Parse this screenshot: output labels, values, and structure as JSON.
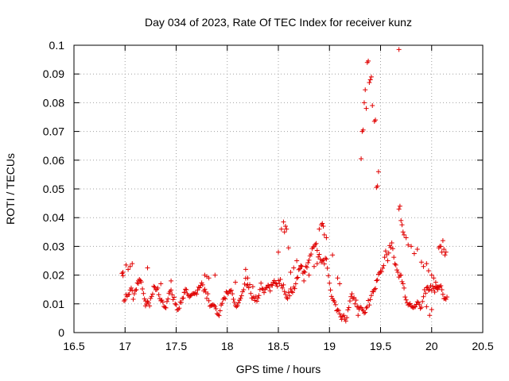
{
  "chart_data": {
    "type": "scatter",
    "title": "Day 034 of 2023, Rate Of TEC Index for receiver kunz",
    "xlabel": "GPS time / hours",
    "ylabel": "ROTI / TECUs",
    "xlim": [
      16.5,
      20.5
    ],
    "ylim": [
      0,
      0.1
    ],
    "xticks": [
      "16.5",
      "17",
      "17.5",
      "18",
      "18.5",
      "19",
      "19.5",
      "20",
      "20.5"
    ],
    "yticks": [
      "0",
      "0.01",
      "0.02",
      "0.03",
      "0.04",
      "0.05",
      "0.06",
      "0.07",
      "0.08",
      "0.09",
      "0.1"
    ],
    "grid": true,
    "marker": "+",
    "color": "#e00000",
    "series": [
      {
        "x": [
          16.97,
          16.98,
          16.99,
          17.0,
          17.01,
          17.02,
          17.03,
          17.04,
          17.05,
          17.06,
          17.07,
          17.08,
          17.09,
          17.1,
          17.11,
          17.12,
          17.13,
          17.14,
          17.15,
          17.16,
          17.17,
          17.18,
          17.19,
          17.2,
          17.21,
          17.22,
          17.23,
          17.24,
          17.25,
          17.26,
          17.27,
          17.28,
          17.29,
          17.3,
          17.31,
          17.32,
          17.33,
          17.34,
          17.35,
          17.36,
          17.37,
          17.38,
          17.39,
          17.4,
          17.41,
          17.42,
          17.43,
          17.44,
          17.45,
          17.46,
          17.47,
          17.48,
          17.49,
          17.5,
          17.51,
          17.52,
          17.53,
          17.54,
          17.55,
          17.56,
          17.57,
          17.58,
          17.59,
          17.6,
          17.61,
          17.62,
          17.63,
          17.64,
          17.65,
          17.66,
          17.67,
          17.68,
          17.69,
          17.7,
          17.71,
          17.72,
          17.73,
          17.74,
          17.75,
          17.76,
          17.77,
          17.78,
          17.79,
          17.8,
          17.81,
          17.82,
          17.83,
          17.84,
          17.85,
          17.86,
          17.87,
          17.88,
          17.89,
          17.9,
          17.91,
          17.92,
          17.93,
          17.94,
          17.95,
          17.96,
          17.97,
          17.98,
          17.99,
          18.0,
          18.01,
          18.02,
          18.03,
          18.04,
          18.05,
          18.06,
          18.07,
          18.08,
          18.09,
          18.1,
          18.11,
          18.12,
          18.13,
          18.14,
          18.15,
          18.16,
          18.17,
          18.18,
          18.19,
          18.2,
          18.21,
          18.22,
          18.23,
          18.24,
          18.25,
          18.26,
          18.27,
          18.28,
          18.29,
          18.3,
          18.31,
          18.32,
          18.33,
          18.34,
          18.35,
          18.36,
          18.37,
          18.38,
          18.39,
          18.4,
          18.41,
          18.42,
          18.43,
          18.44,
          18.45,
          18.46,
          18.47,
          18.48,
          18.49,
          18.5,
          18.51,
          18.52,
          18.53,
          18.54,
          18.55,
          18.56,
          18.57,
          18.58,
          18.59,
          18.6,
          18.61,
          18.62,
          18.63,
          18.64,
          18.65,
          18.66,
          18.67,
          18.68,
          18.69,
          18.7,
          18.71,
          18.72,
          18.73,
          18.74,
          18.75,
          18.76,
          18.77,
          18.78,
          18.79,
          18.8,
          18.81,
          18.82,
          18.83,
          18.84,
          18.85,
          18.86,
          18.87,
          18.88,
          18.89,
          18.9,
          18.91,
          18.92,
          18.93,
          18.94,
          18.95,
          18.96,
          18.97,
          18.98,
          18.99,
          19.0,
          19.01,
          19.02,
          19.03,
          19.04,
          19.05,
          19.06,
          19.07,
          19.08,
          19.09,
          19.1,
          19.11,
          19.12,
          19.13,
          19.14,
          19.15,
          19.16,
          19.17,
          19.18,
          19.19,
          19.2,
          19.21,
          19.22,
          19.23,
          19.24,
          19.25,
          19.26,
          19.27,
          19.28,
          19.29,
          19.3,
          19.31,
          19.32,
          19.33,
          19.34,
          19.35,
          19.36,
          19.37,
          19.38,
          19.39,
          19.4,
          19.41,
          19.42,
          19.43,
          19.44,
          19.45,
          19.46,
          19.47,
          19.48,
          19.49,
          19.5,
          19.51,
          19.52,
          19.53,
          19.54,
          19.55,
          19.56,
          19.57,
          19.58,
          19.59,
          19.6,
          19.61,
          19.62,
          19.63,
          19.64,
          19.65,
          19.66,
          19.67,
          19.68,
          19.69,
          19.7,
          19.71,
          19.72,
          19.73,
          19.74,
          19.75,
          19.76,
          19.77,
          19.78,
          19.79,
          19.8,
          19.81,
          19.82,
          19.83,
          19.84,
          19.85,
          19.86,
          19.87,
          19.88,
          19.89,
          19.9,
          19.91,
          19.92,
          19.93,
          19.94,
          19.95,
          19.96,
          19.97,
          19.98,
          19.99,
          20.0,
          20.01,
          20.02,
          20.03,
          20.04,
          20.05,
          20.06,
          20.07,
          20.08,
          20.09,
          20.1,
          20.11,
          20.12,
          20.13,
          20.14,
          20.15
        ],
        "y": [
          0.0206,
          0.0198,
          0.011,
          0.0114,
          0.0132,
          0.0126,
          0.0132,
          0.0133,
          0.0148,
          0.0155,
          0.0146,
          0.0116,
          0.0135,
          0.0147,
          0.0149,
          0.0173,
          0.0171,
          0.0185,
          0.0181,
          0.0176,
          0.0152,
          0.0136,
          0.0117,
          0.0093,
          0.0099,
          0.0109,
          0.0104,
          0.0093,
          0.0119,
          0.0126,
          0.0134,
          0.0161,
          0.0158,
          0.0149,
          0.015,
          0.0155,
          0.0132,
          0.0118,
          0.0111,
          0.0113,
          0.0106,
          0.0091,
          0.0088,
          0.0086,
          0.0108,
          0.0117,
          0.0137,
          0.0143,
          0.0148,
          0.0132,
          0.0115,
          0.0123,
          0.01,
          0.0097,
          0.0079,
          0.008,
          0.0085,
          0.0106,
          0.0105,
          0.0119,
          0.012,
          0.014,
          0.0151,
          0.0149,
          0.0135,
          0.0129,
          0.0124,
          0.0128,
          0.0131,
          0.0135,
          0.0136,
          0.0135,
          0.0138,
          0.0134,
          0.0148,
          0.0158,
          0.0156,
          0.0164,
          0.0173,
          0.0166,
          0.0145,
          0.0151,
          0.0141,
          0.0119,
          0.0135,
          0.0111,
          0.0092,
          0.0094,
          0.0095,
          0.0097,
          0.0095,
          0.0091,
          0.0083,
          0.0066,
          0.0063,
          0.0059,
          0.0076,
          0.0096,
          0.0102,
          0.0116,
          0.0121,
          0.0118,
          0.0142,
          0.0138,
          0.0136,
          0.0144,
          0.0145,
          0.0147,
          0.0135,
          0.0116,
          0.0105,
          0.0094,
          0.009,
          0.0094,
          0.0104,
          0.0113,
          0.0119,
          0.0128,
          0.0142,
          0.0149,
          0.0169,
          0.0189,
          0.0163,
          0.0167,
          0.0156,
          0.0167,
          0.0136,
          0.012,
          0.012,
          0.0124,
          0.0112,
          0.0125,
          0.0109,
          0.012,
          0.0129,
          0.015,
          0.0172,
          0.0153,
          0.0151,
          0.0139,
          0.015,
          0.0157,
          0.0156,
          0.0164,
          0.0158,
          0.0145,
          0.0167,
          0.0164,
          0.0175,
          0.0181,
          0.0172,
          0.017,
          0.0161,
          0.0181,
          0.0171,
          0.0185,
          0.0164,
          0.0155,
          0.0166,
          0.0143,
          0.0133,
          0.0122,
          0.0118,
          0.014,
          0.0128,
          0.0152,
          0.0143,
          0.014,
          0.0158,
          0.0153,
          0.017,
          0.0189,
          0.0192,
          0.0219,
          0.0222,
          0.0233,
          0.023,
          0.0207,
          0.0213,
          0.021,
          0.0231,
          0.0227,
          0.0243,
          0.0252,
          0.0267,
          0.0273,
          0.0292,
          0.0298,
          0.0299,
          0.0306,
          0.031,
          0.0286,
          0.0263,
          0.0272,
          0.0256,
          0.0245,
          0.025,
          0.0252,
          0.0239,
          0.0259,
          0.0256,
          0.0224,
          0.0198,
          0.0172,
          0.0148,
          0.0126,
          0.0118,
          0.0112,
          0.0107,
          0.0097,
          0.0076,
          0.0079,
          0.0077,
          0.0065,
          0.0055,
          0.0046,
          0.0057,
          0.006,
          0.0047,
          0.004,
          0.0052,
          0.0079,
          0.0087,
          0.011,
          0.0125,
          0.0135,
          0.0118,
          0.0122,
          0.01,
          0.0113,
          0.009,
          0.0089,
          0.0081,
          0.0088,
          0.0087,
          0.0081,
          0.0076,
          0.0068,
          0.007,
          0.0086,
          0.0089,
          0.0112,
          0.0096,
          0.0115,
          0.0129,
          0.0143,
          0.0142,
          0.015,
          0.0153,
          0.0181,
          0.0183,
          0.0203,
          0.0208,
          0.0213,
          0.0212,
          0.0224,
          0.0233,
          0.0262,
          0.0284,
          0.0271,
          0.025,
          0.0277,
          0.0303,
          0.0296,
          0.0312,
          0.0292,
          0.0262,
          0.0239,
          0.0235,
          0.0218,
          0.021,
          0.0193,
          0.0199,
          0.02,
          0.0177,
          0.017,
          0.0155,
          0.0124,
          0.0114,
          0.0104,
          0.0096,
          0.0098,
          0.0101,
          0.0091,
          0.0089,
          0.0087,
          0.0089,
          0.009,
          0.0098,
          0.0107,
          0.0104,
          0.0097,
          0.0084,
          0.0088,
          0.0108,
          0.0125,
          0.0149,
          0.0137,
          0.0156,
          0.0158,
          0.0147,
          0.015,
          0.0163,
          0.0147,
          0.0162,
          0.0153,
          0.0141,
          0.0158,
          0.0155,
          0.0158,
          0.0159,
          0.016,
          0.0163,
          0.0149,
          0.0133,
          0.0118,
          0.0119,
          0.0116,
          0.0124
        ]
      },
      {
        "x": [
          16.98,
          17.01,
          17.03,
          17.05,
          17.07,
          17.13,
          17.2,
          17.22,
          17.35,
          17.45,
          17.58,
          17.78,
          17.8,
          17.82,
          17.88,
          18.08,
          18.18,
          18.2,
          18.25,
          18.4,
          18.5,
          18.53,
          18.55,
          18.56,
          18.57,
          18.58,
          18.6,
          18.62,
          18.65,
          18.68,
          18.72,
          18.75,
          18.8,
          18.85,
          18.88,
          18.9,
          18.92,
          18.93,
          18.94,
          18.95,
          18.97,
          19.03,
          19.08,
          19.1,
          19.28,
          19.31,
          19.32,
          19.33,
          19.34,
          19.35,
          19.36,
          19.37,
          19.38,
          19.39,
          19.4,
          19.41,
          19.42,
          19.44,
          19.45,
          19.46,
          19.47,
          19.48,
          19.68,
          19.69,
          19.7,
          19.71,
          19.72,
          19.73,
          19.75,
          19.77,
          19.8,
          19.83,
          19.86,
          19.9,
          19.92,
          19.95,
          19.97,
          20.0,
          20.02,
          20.04,
          20.05,
          20.06,
          20.07,
          20.08,
          20.09,
          20.1,
          20.11,
          20.12,
          20.13,
          20.14,
          19.68,
          19.95,
          19.98,
          20.0
        ],
        "y": [
          0.021,
          0.0235,
          0.022,
          0.023,
          0.024,
          0.018,
          0.011,
          0.0225,
          0.017,
          0.018,
          0.014,
          0.02,
          0.0195,
          0.019,
          0.02,
          0.0175,
          0.022,
          0.019,
          0.016,
          0.0165,
          0.028,
          0.036,
          0.0385,
          0.035,
          0.037,
          0.036,
          0.0295,
          0.021,
          0.0225,
          0.025,
          0.023,
          0.018,
          0.02,
          0.023,
          0.024,
          0.036,
          0.0375,
          0.038,
          0.037,
          0.034,
          0.033,
          0.027,
          0.019,
          0.017,
          0.006,
          0.0605,
          0.07,
          0.0705,
          0.08,
          0.0845,
          0.078,
          0.094,
          0.0945,
          0.087,
          0.088,
          0.089,
          0.079,
          0.0735,
          0.074,
          0.0505,
          0.051,
          0.056,
          0.0985,
          0.044,
          0.039,
          0.0375,
          0.035,
          0.034,
          0.033,
          0.0305,
          0.03,
          0.0275,
          0.029,
          0.0245,
          0.023,
          0.024,
          0.0215,
          0.02,
          0.019,
          0.0175,
          0.016,
          0.015,
          0.0295,
          0.03,
          0.03,
          0.028,
          0.032,
          0.029,
          0.027,
          0.028,
          0.043,
          0.009,
          0.006,
          0.008
        ]
      }
    ]
  }
}
